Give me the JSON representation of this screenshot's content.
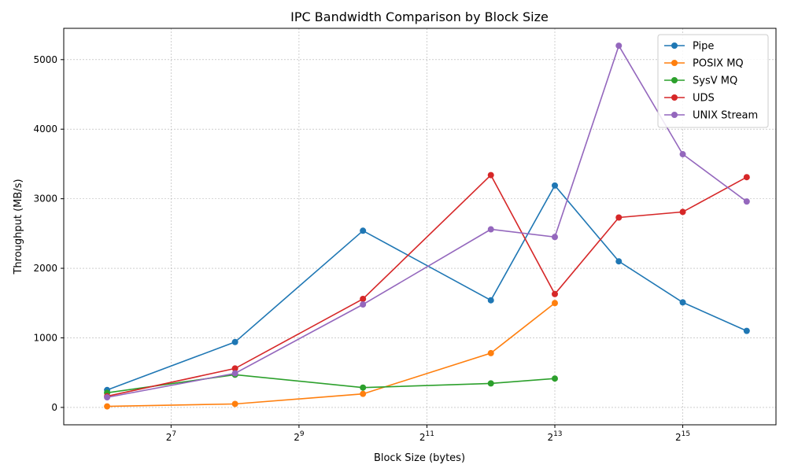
{
  "chart_data": {
    "type": "line",
    "title": "IPC Bandwidth Comparison by Block Size",
    "xlabel": "Block Size (bytes)",
    "ylabel": "Throughput (MB/s)",
    "xscale": "log2",
    "xlim": [
      40,
      90000
    ],
    "ylim": [
      -250,
      5450
    ],
    "x_ticks": [
      {
        "value": 128,
        "base": "2",
        "exp": "7"
      },
      {
        "value": 512,
        "base": "2",
        "exp": "9"
      },
      {
        "value": 2048,
        "base": "2",
        "exp": "11"
      },
      {
        "value": 8192,
        "base": "2",
        "exp": "13"
      },
      {
        "value": 32768,
        "base": "2",
        "exp": "15"
      }
    ],
    "y_ticks": [
      0,
      1000,
      2000,
      3000,
      4000,
      5000
    ],
    "grid": true,
    "legend_position": "top-right",
    "series": [
      {
        "name": "Pipe",
        "color": "#1f77b4",
        "points": [
          [
            64,
            250
          ],
          [
            256,
            940
          ],
          [
            1024,
            2540
          ],
          [
            4096,
            1540
          ],
          [
            8192,
            3190
          ],
          [
            16384,
            2100
          ],
          [
            32768,
            1510
          ],
          [
            65536,
            1100
          ]
        ]
      },
      {
        "name": "POSIX MQ",
        "color": "#ff7f0e",
        "points": [
          [
            64,
            15
          ],
          [
            256,
            50
          ],
          [
            1024,
            195
          ],
          [
            4096,
            780
          ],
          [
            8192,
            1500
          ]
        ]
      },
      {
        "name": "SysV MQ",
        "color": "#2ca02c",
        "points": [
          [
            64,
            210
          ],
          [
            256,
            470
          ],
          [
            1024,
            285
          ],
          [
            4096,
            345
          ],
          [
            8192,
            415
          ]
        ]
      },
      {
        "name": "UDS",
        "color": "#d62728",
        "points": [
          [
            64,
            160
          ],
          [
            256,
            560
          ],
          [
            1024,
            1560
          ],
          [
            4096,
            3340
          ],
          [
            8192,
            1630
          ],
          [
            16384,
            2730
          ],
          [
            32768,
            2810
          ],
          [
            65536,
            3310
          ]
        ]
      },
      {
        "name": "UNIX Stream",
        "color": "#9467bd",
        "points": [
          [
            64,
            145
          ],
          [
            256,
            490
          ],
          [
            1024,
            1480
          ],
          [
            4096,
            2560
          ],
          [
            8192,
            2450
          ],
          [
            16384,
            5200
          ],
          [
            32768,
            3640
          ],
          [
            65536,
            2960
          ]
        ]
      }
    ]
  }
}
